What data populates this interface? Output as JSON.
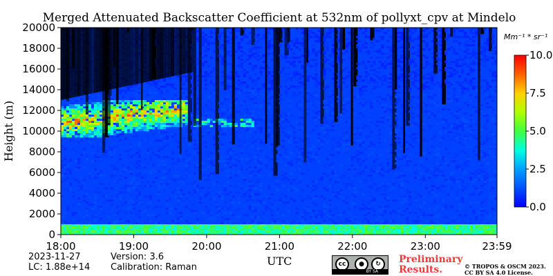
{
  "chart_data": {
    "type": "heatmap",
    "title": "Merged Attenuated Backscatter Coefficient at 532nm of pollyxt_cpv at Mindelo",
    "xlabel": "UTC",
    "ylabel": "Height (m)",
    "x_range": [
      "18:00",
      "23:59"
    ],
    "x_ticks": [
      "18:00",
      "19:00",
      "20:00",
      "21:00",
      "22:00",
      "23:00",
      "23:59"
    ],
    "x_tick_hours": [
      18,
      19,
      20,
      21,
      22,
      23,
      23.983
    ],
    "ylim": [
      0,
      20000
    ],
    "y_ticks": [
      0,
      2000,
      4000,
      6000,
      8000,
      10000,
      12000,
      14000,
      16000,
      18000,
      20000
    ],
    "colorbar": {
      "label": "Mm⁻¹ * sr⁻¹",
      "min": 0.0,
      "max": 10.0,
      "ticks": [
        "0.0",
        "2.5",
        "5.0",
        "7.5",
        "10.0"
      ],
      "colormap": "jet"
    },
    "features": [
      {
        "name": "surface aerosol layer",
        "height_m": [
          0,
          1000
        ],
        "time": [
          "18:00",
          "23:59"
        ],
        "value_approx": 4.5
      },
      {
        "name": "cirrus cloud",
        "height_m": [
          9500,
          13000
        ],
        "time": [
          "18:00",
          "19:45"
        ],
        "value_approx": 8
      },
      {
        "name": "thin cloud",
        "height_m": [
          10400,
          11200
        ],
        "time": [
          "19:50",
          "20:40"
        ],
        "value_approx": 5
      },
      {
        "name": "background",
        "height_m": [
          1000,
          20000
        ],
        "time": [
          "18:00",
          "23:59"
        ],
        "value_approx": 1.0
      }
    ]
  },
  "info": {
    "date": "2023-11-27",
    "version": "Version: 3.6",
    "lc": "LC: 1.88e+14",
    "calibration": "Calibration: Raman"
  },
  "license": {
    "cc_text": "cc",
    "by_sa": "BY  SA",
    "prelim_line1": "Preliminary",
    "prelim_line2": "Results.",
    "copyright_line1": "© TROPOS & OSCM 2023.",
    "copyright_line2": "CC BY SA 4.0 License."
  },
  "colors": {
    "jet": [
      "#00007f",
      "#0000ff",
      "#007fff",
      "#00ffff",
      "#7fff7f",
      "#ffff00",
      "#ff7f00",
      "#ff0000",
      "#7f0000"
    ]
  }
}
